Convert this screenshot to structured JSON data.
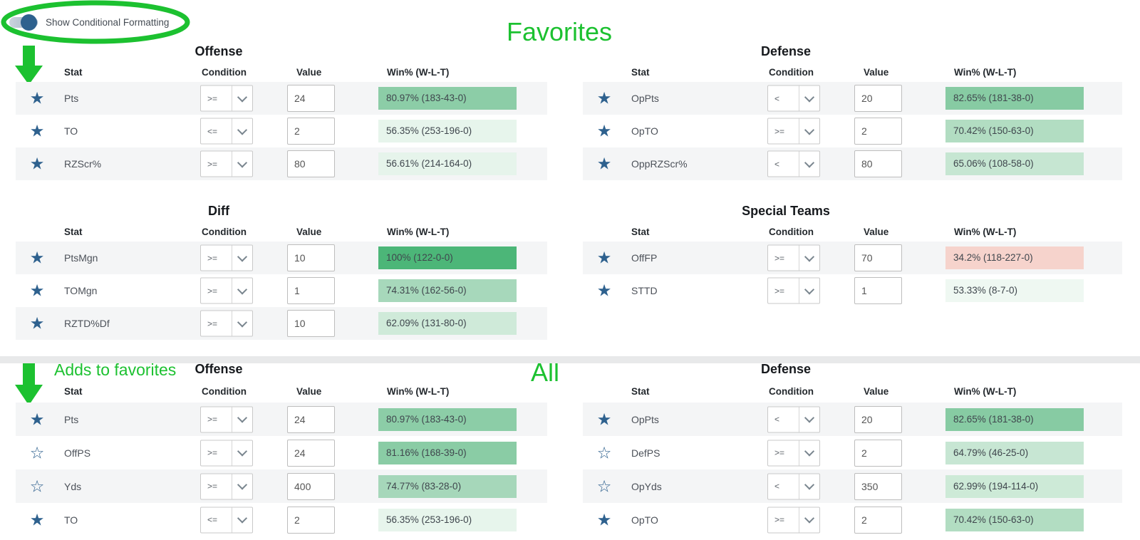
{
  "toggle": {
    "label": "Show Conditional Formatting",
    "state": "on"
  },
  "annotations": {
    "favorites_title": "Favorites",
    "all_title": "All",
    "adds_note": "Adds to favorites"
  },
  "colors": {
    "annotation_green": "#1cc130",
    "star_blue": "#2e618e",
    "row_stripe": "#f4f5f6",
    "positive_strong": "#4cb678",
    "negative_cell": "#f6d3cc"
  },
  "headers": {
    "stat": "Stat",
    "condition": "Condition",
    "value": "Value",
    "win": "Win% (W-L-T)"
  },
  "sections": {
    "favorites": {
      "offense": {
        "title": "Offense",
        "rows": [
          {
            "starred": true,
            "stat": "Pts",
            "condition": ">=",
            "value": "24",
            "win": "80.97% (183-43-0)",
            "win_bg": "#8ccda7"
          },
          {
            "starred": true,
            "stat": "TO",
            "condition": "<=",
            "value": "2",
            "win": "56.35% (253-196-0)",
            "win_bg": "#e7f5ec"
          },
          {
            "starred": true,
            "stat": "RZScr%",
            "condition": ">=",
            "value": "80",
            "win": "56.61% (214-164-0)",
            "win_bg": "#e6f4eb"
          }
        ]
      },
      "defense": {
        "title": "Defense",
        "rows": [
          {
            "starred": true,
            "stat": "OpPts",
            "condition": "<",
            "value": "20",
            "win": "82.65% (181-38-0)",
            "win_bg": "#87cba3"
          },
          {
            "starred": true,
            "stat": "OpTO",
            "condition": ">=",
            "value": "2",
            "win": "70.42% (150-63-0)",
            "win_bg": "#b2ddc2"
          },
          {
            "starred": true,
            "stat": "OppRZScr%",
            "condition": "<",
            "value": "80",
            "win": "65.06% (108-58-0)",
            "win_bg": "#c6e6d2"
          }
        ]
      },
      "diff": {
        "title": "Diff",
        "rows": [
          {
            "starred": true,
            "stat": "PtsMgn",
            "condition": ">=",
            "value": "10",
            "win": "100% (122-0-0)",
            "win_bg": "#4cb678"
          },
          {
            "starred": true,
            "stat": "TOMgn",
            "condition": ">=",
            "value": "1",
            "win": "74.31% (162-56-0)",
            "win_bg": "#a7d8bb"
          },
          {
            "starred": true,
            "stat": "RZTD%Df",
            "condition": ">=",
            "value": "10",
            "win": "62.09% (131-80-0)",
            "win_bg": "#cfead9"
          }
        ]
      },
      "special_teams": {
        "title": "Special Teams",
        "rows": [
          {
            "starred": true,
            "stat": "OffFP",
            "condition": ">=",
            "value": "70",
            "win": "34.2% (118-227-0)",
            "win_bg": "#f6d3cc"
          },
          {
            "starred": true,
            "stat": "STTD",
            "condition": ">=",
            "value": "1",
            "win": "53.33% (8-7-0)",
            "win_bg": "#eff8f2"
          }
        ]
      }
    },
    "all": {
      "offense": {
        "title": "Offense",
        "rows": [
          {
            "starred": true,
            "stat": "Pts",
            "condition": ">=",
            "value": "24",
            "win": "80.97% (183-43-0)",
            "win_bg": "#8ccda7"
          },
          {
            "starred": false,
            "stat": "OffPS",
            "condition": ">=",
            "value": "24",
            "win": "81.16% (168-39-0)",
            "win_bg": "#8acca5"
          },
          {
            "starred": false,
            "stat": "Yds",
            "condition": ">=",
            "value": "400",
            "win": "74.77% (83-28-0)",
            "win_bg": "#a6d7ba"
          },
          {
            "starred": true,
            "stat": "TO",
            "condition": "<=",
            "value": "2",
            "win": "56.35% (253-196-0)",
            "win_bg": "#e7f5ec"
          }
        ]
      },
      "defense": {
        "title": "Defense",
        "rows": [
          {
            "starred": true,
            "stat": "OpPts",
            "condition": "<",
            "value": "20",
            "win": "82.65% (181-38-0)",
            "win_bg": "#87cba3"
          },
          {
            "starred": false,
            "stat": "DefPS",
            "condition": ">=",
            "value": "2",
            "win": "64.79% (46-25-0)",
            "win_bg": "#c7e6d3"
          },
          {
            "starred": false,
            "stat": "OpYds",
            "condition": "<",
            "value": "350",
            "win": "62.99% (194-114-0)",
            "win_bg": "#cdead7"
          },
          {
            "starred": true,
            "stat": "OpTO",
            "condition": ">=",
            "value": "2",
            "win": "70.42% (150-63-0)",
            "win_bg": "#b2ddc2"
          }
        ]
      }
    }
  }
}
